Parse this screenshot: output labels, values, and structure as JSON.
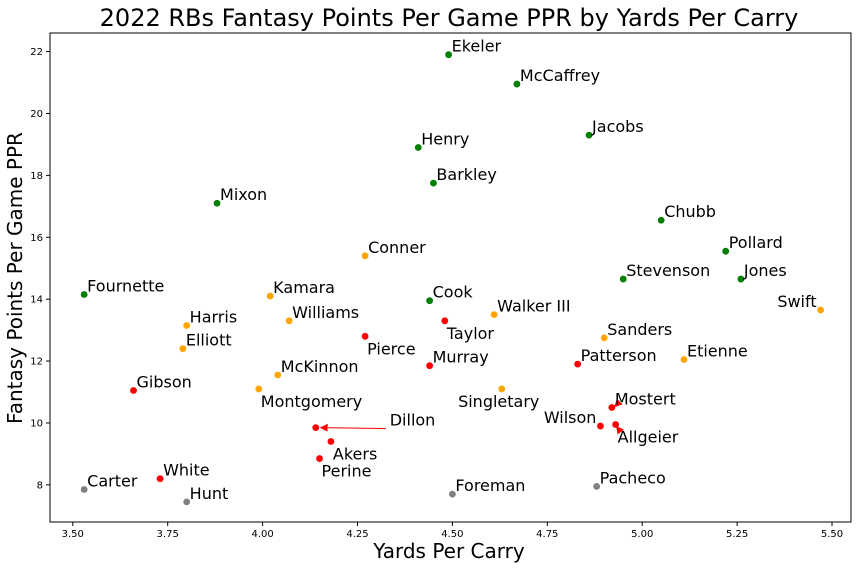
{
  "chart_data": {
    "type": "scatter",
    "title": "2022 RBs Fantasy Points Per Game PPR by Yards Per Carry",
    "xlabel": "Yards Per Carry",
    "ylabel": "Fantasy Points Per Game PPR",
    "xlim": [
      3.44,
      5.55
    ],
    "ylim": [
      6.8,
      22.6
    ],
    "xticks": [
      3.5,
      3.75,
      4.0,
      4.25,
      4.5,
      4.75,
      5.0,
      5.25,
      5.5
    ],
    "xtick_labels": [
      "3.50",
      "3.75",
      "4.00",
      "4.25",
      "4.50",
      "4.75",
      "5.00",
      "5.25",
      "5.50"
    ],
    "yticks": [
      8,
      10,
      12,
      14,
      16,
      18,
      20,
      22
    ],
    "ytick_labels": [
      "8",
      "10",
      "12",
      "14",
      "16",
      "18",
      "20",
      "22"
    ],
    "grid": false,
    "legend": false,
    "colors": {
      "green": "#008000",
      "orange": "#ffa500",
      "red": "#ff0000",
      "gray": "#808080",
      "arrow": "#ff0000"
    },
    "points": [
      {
        "name": "Ekeler",
        "x": 4.49,
        "y": 21.9,
        "color": "green",
        "label_pos": "ur"
      },
      {
        "name": "McCaffrey",
        "x": 4.67,
        "y": 20.95,
        "color": "green",
        "label_pos": "ur"
      },
      {
        "name": "Jacobs",
        "x": 4.86,
        "y": 19.3,
        "color": "green",
        "label_pos": "ur"
      },
      {
        "name": "Henry",
        "x": 4.41,
        "y": 18.9,
        "color": "green",
        "label_pos": "ur"
      },
      {
        "name": "Barkley",
        "x": 4.45,
        "y": 17.75,
        "color": "green",
        "label_pos": "ur"
      },
      {
        "name": "Mixon",
        "x": 3.88,
        "y": 17.1,
        "color": "green",
        "label_pos": "ur"
      },
      {
        "name": "Chubb",
        "x": 5.05,
        "y": 16.55,
        "color": "green",
        "label_pos": "ur"
      },
      {
        "name": "Pollard",
        "x": 5.22,
        "y": 15.55,
        "color": "green",
        "label_pos": "ur"
      },
      {
        "name": "Stevenson",
        "x": 4.95,
        "y": 14.65,
        "color": "green",
        "label_pos": "ur"
      },
      {
        "name": "Jones",
        "x": 5.26,
        "y": 14.65,
        "color": "green",
        "label_pos": "ur"
      },
      {
        "name": "Fournette",
        "x": 3.53,
        "y": 14.15,
        "color": "green",
        "label_pos": "ur"
      },
      {
        "name": "Cook",
        "x": 4.44,
        "y": 13.95,
        "color": "green",
        "label_pos": "ur"
      },
      {
        "name": "Conner",
        "x": 4.27,
        "y": 15.4,
        "color": "orange",
        "label_pos": "ur"
      },
      {
        "name": "Kamara",
        "x": 4.02,
        "y": 14.1,
        "color": "orange",
        "label_pos": "ur"
      },
      {
        "name": "Swift",
        "x": 5.47,
        "y": 13.65,
        "color": "orange",
        "label_pos": "ul"
      },
      {
        "name": "Williams",
        "x": 4.07,
        "y": 13.3,
        "color": "orange",
        "label_pos": "ur"
      },
      {
        "name": "Walker III",
        "x": 4.61,
        "y": 13.5,
        "color": "orange",
        "label_pos": "ur"
      },
      {
        "name": "Harris",
        "x": 3.8,
        "y": 13.15,
        "color": "orange",
        "label_pos": "ur"
      },
      {
        "name": "Sanders",
        "x": 4.9,
        "y": 12.75,
        "color": "orange",
        "label_pos": "ur"
      },
      {
        "name": "Elliott",
        "x": 3.79,
        "y": 12.4,
        "color": "orange",
        "label_pos": "ur"
      },
      {
        "name": "Etienne",
        "x": 5.11,
        "y": 12.05,
        "color": "orange",
        "label_pos": "ur"
      },
      {
        "name": "McKinnon",
        "x": 4.04,
        "y": 11.55,
        "color": "orange",
        "label_pos": "ur"
      },
      {
        "name": "Montgomery",
        "x": 3.99,
        "y": 11.1,
        "color": "orange",
        "label_pos": "lr"
      },
      {
        "name": "Singletary",
        "x": 4.63,
        "y": 11.1,
        "color": "orange",
        "label_pos": "lc"
      },
      {
        "name": "Taylor",
        "x": 4.48,
        "y": 13.3,
        "color": "red",
        "label_pos": "lr"
      },
      {
        "name": "Pierce",
        "x": 4.27,
        "y": 12.8,
        "color": "red",
        "label_pos": "lr"
      },
      {
        "name": "Murray",
        "x": 4.44,
        "y": 11.85,
        "color": "red",
        "label_pos": "ur"
      },
      {
        "name": "Patterson",
        "x": 4.83,
        "y": 11.9,
        "color": "red",
        "label_pos": "ur"
      },
      {
        "name": "Gibson",
        "x": 3.66,
        "y": 11.05,
        "color": "red",
        "label_pos": "ur"
      },
      {
        "name": "Mostert",
        "x": 4.92,
        "y": 10.5,
        "color": "red",
        "label_pos": "ur"
      },
      {
        "name": "Wilson",
        "x": 4.89,
        "y": 9.9,
        "color": "red",
        "label_pos": "ul"
      },
      {
        "name": "Allgeier",
        "x": 4.93,
        "y": 9.95,
        "color": "red",
        "label_pos": "lr"
      },
      {
        "name": "Dillon",
        "x": 4.14,
        "y": 9.85,
        "color": "red",
        "label_pos": "arrow"
      },
      {
        "name": "Akers",
        "x": 4.18,
        "y": 9.4,
        "color": "red",
        "label_pos": "lr"
      },
      {
        "name": "Perine",
        "x": 4.15,
        "y": 8.85,
        "color": "red",
        "label_pos": "lr"
      },
      {
        "name": "White",
        "x": 3.73,
        "y": 8.2,
        "color": "red",
        "label_pos": "ur"
      },
      {
        "name": "Carter",
        "x": 3.53,
        "y": 7.85,
        "color": "gray",
        "label_pos": "ur"
      },
      {
        "name": "Hunt",
        "x": 3.8,
        "y": 7.45,
        "color": "gray",
        "label_pos": "ur"
      },
      {
        "name": "Foreman",
        "x": 4.5,
        "y": 7.7,
        "color": "gray",
        "label_pos": "ur"
      },
      {
        "name": "Pacheco",
        "x": 4.88,
        "y": 7.95,
        "color": "gray",
        "label_pos": "ur"
      }
    ]
  }
}
